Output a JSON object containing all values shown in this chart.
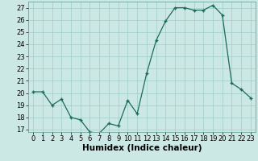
{
  "x": [
    0,
    1,
    2,
    3,
    4,
    5,
    6,
    7,
    8,
    9,
    10,
    11,
    12,
    13,
    14,
    15,
    16,
    17,
    18,
    19,
    20,
    21,
    22,
    23
  ],
  "y": [
    20.1,
    20.1,
    19.0,
    19.5,
    18.0,
    17.8,
    16.8,
    16.7,
    17.5,
    17.3,
    19.4,
    18.3,
    21.6,
    24.3,
    25.9,
    27.0,
    27.0,
    26.8,
    26.8,
    27.2,
    26.4,
    20.8,
    20.3,
    19.6
  ],
  "xlabel": "Humidex (Indice chaleur)",
  "ylim": [
    16.8,
    27.5
  ],
  "yticks": [
    17,
    18,
    19,
    20,
    21,
    22,
    23,
    24,
    25,
    26,
    27
  ],
  "xticks": [
    0,
    1,
    2,
    3,
    4,
    5,
    6,
    7,
    8,
    9,
    10,
    11,
    12,
    13,
    14,
    15,
    16,
    17,
    18,
    19,
    20,
    21,
    22,
    23
  ],
  "line_color": "#1a6b5a",
  "marker": "+",
  "bg_color": "#cce8e4",
  "grid_color": "#9ececa",
  "label_fontsize": 7.5,
  "tick_fontsize": 6.0
}
